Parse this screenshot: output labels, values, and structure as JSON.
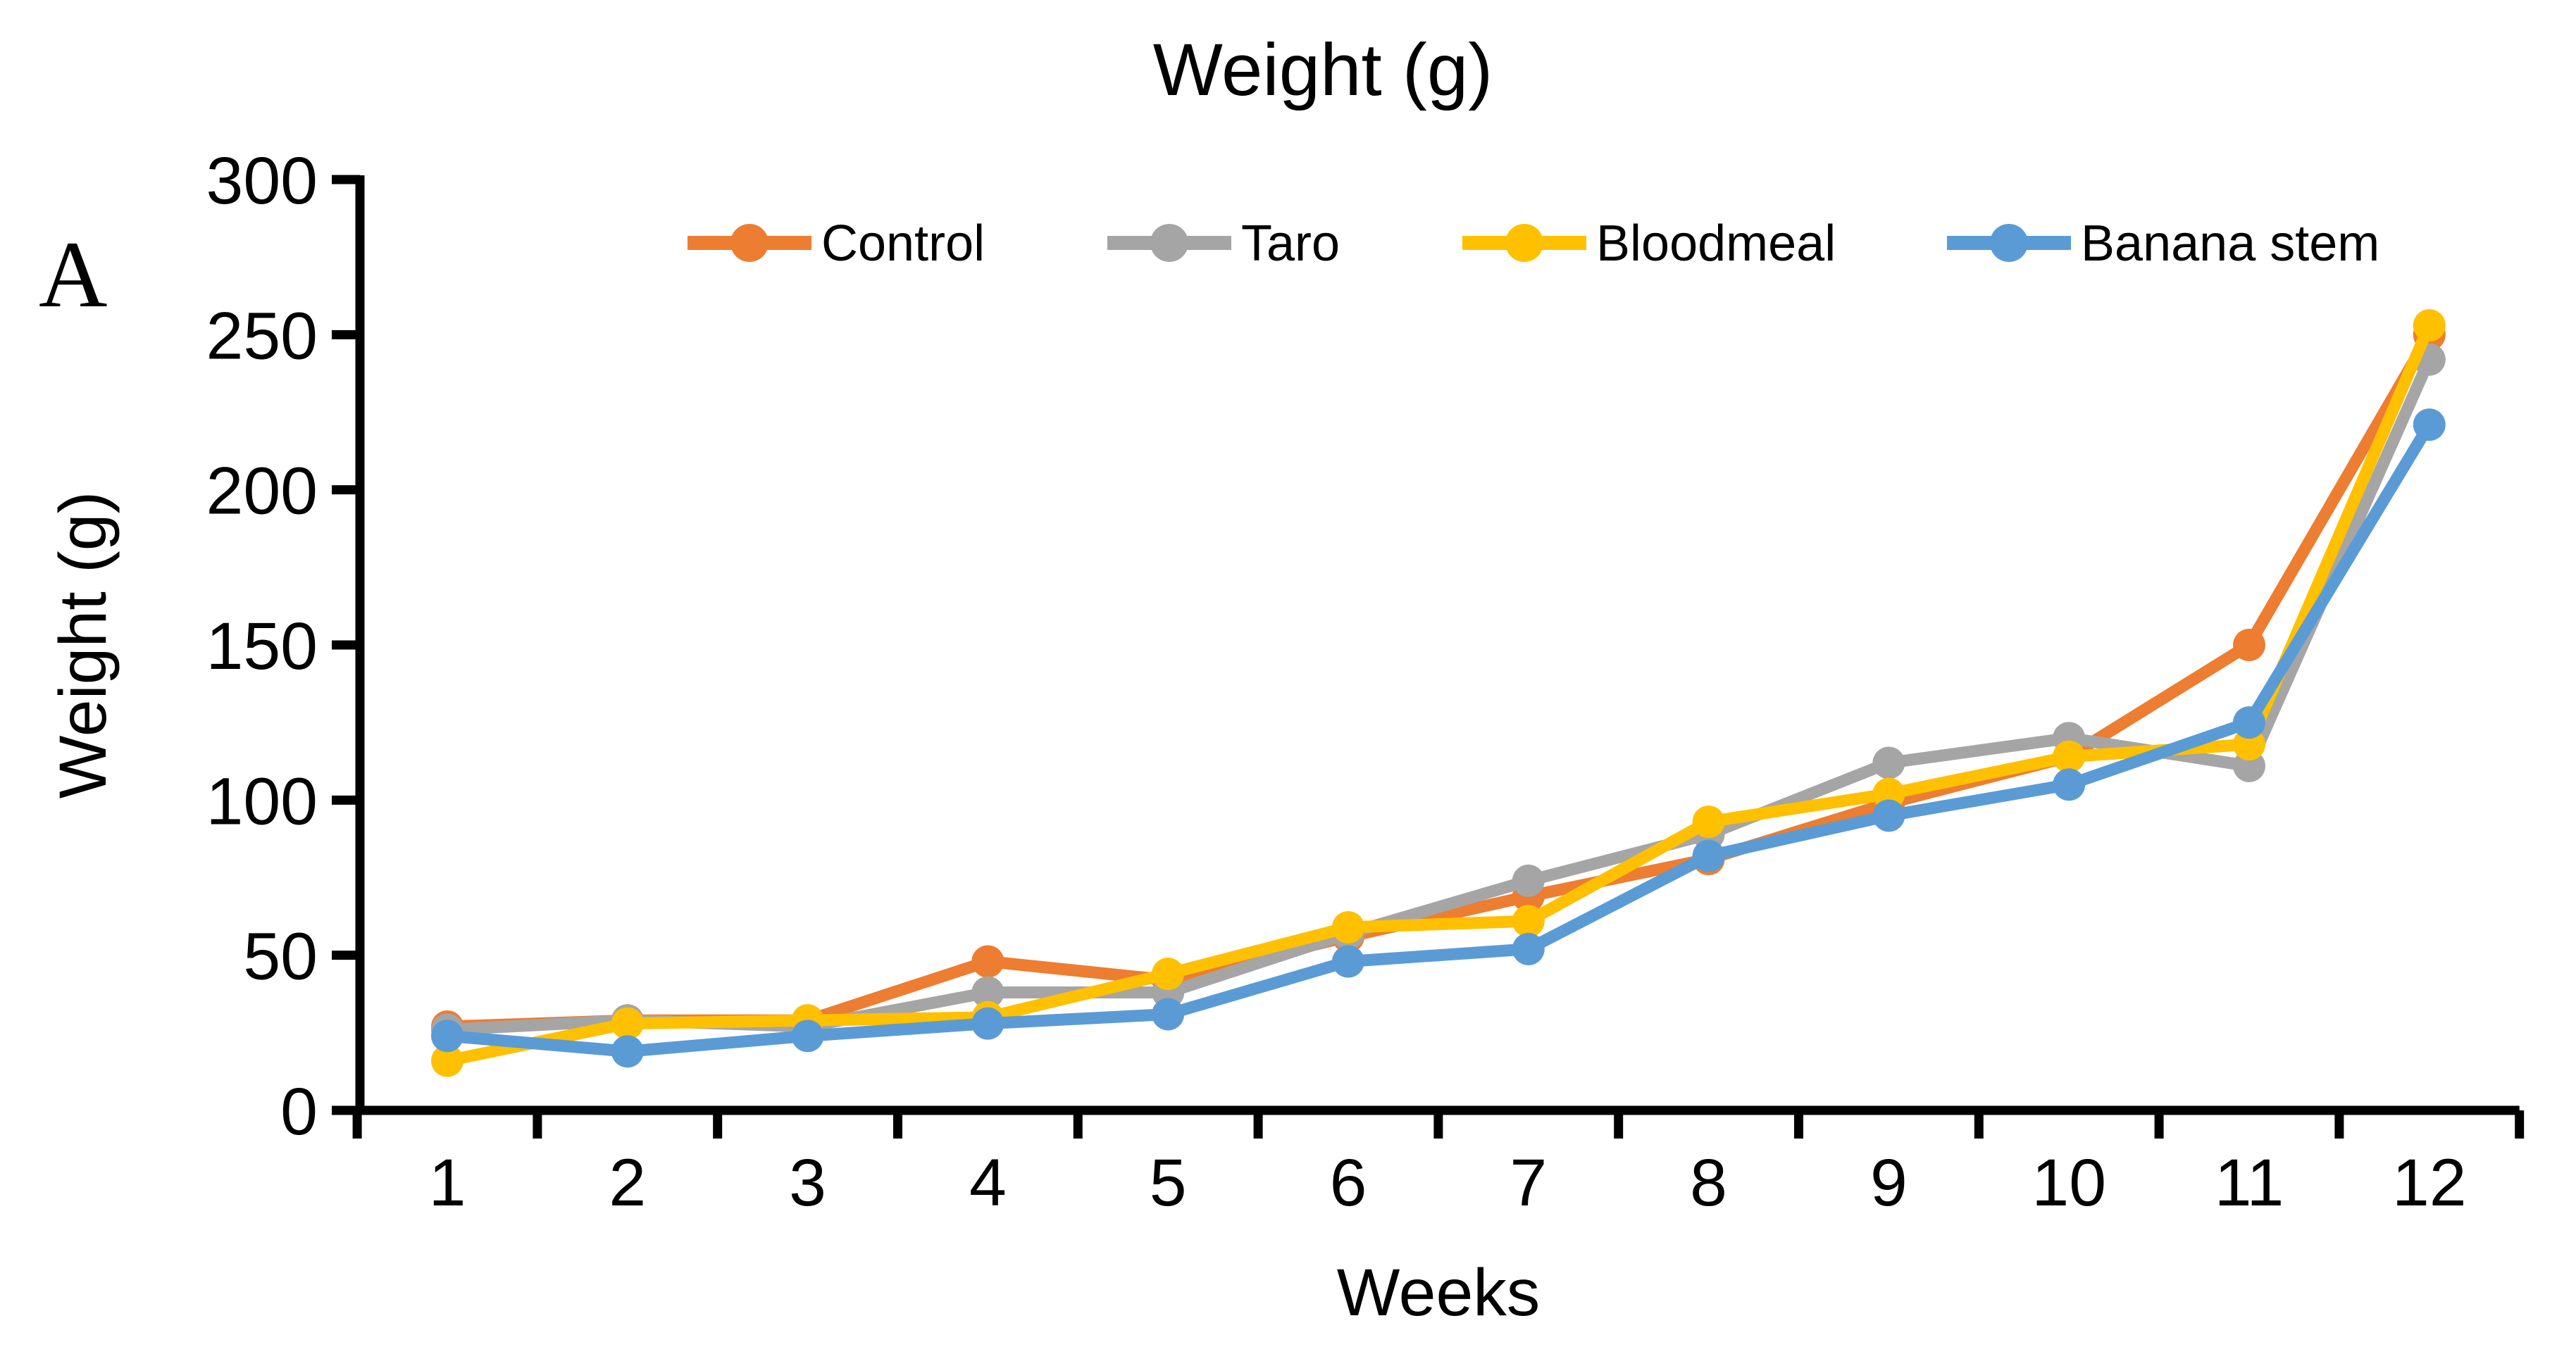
{
  "panel_label": "A",
  "chart_data": {
    "type": "line",
    "title": "Weight (g)",
    "xlabel": "Weeks",
    "ylabel": "Weight (g)",
    "categories": [
      1,
      2,
      3,
      4,
      5,
      6,
      7,
      8,
      9,
      10,
      11,
      12
    ],
    "y_ticks": [
      0,
      50,
      100,
      150,
      200,
      250,
      300
    ],
    "ylim": [
      0,
      300
    ],
    "grid": false,
    "legend_position": "top-center",
    "axis_color": "#000000",
    "background_color": "#ffffff",
    "series": [
      {
        "name": "Control",
        "color": "#ED7D31",
        "values": [
          27,
          29,
          29,
          48,
          42,
          56,
          69,
          81,
          99,
          114,
          150,
          250
        ]
      },
      {
        "name": "Taro",
        "color": "#A5A5A5",
        "values": [
          26,
          29,
          27,
          38,
          38,
          57,
          74,
          89,
          112,
          120,
          111,
          242
        ]
      },
      {
        "name": "Bloodmeal",
        "color": "#FFC000",
        "values": [
          16,
          28,
          29,
          30,
          44,
          59,
          61,
          93,
          102,
          114,
          118,
          253
        ]
      },
      {
        "name": "Banana stem",
        "color": "#5B9BD5",
        "values": [
          24,
          19,
          24,
          28,
          31,
          48,
          52,
          82,
          95,
          105,
          125,
          221
        ]
      }
    ]
  }
}
